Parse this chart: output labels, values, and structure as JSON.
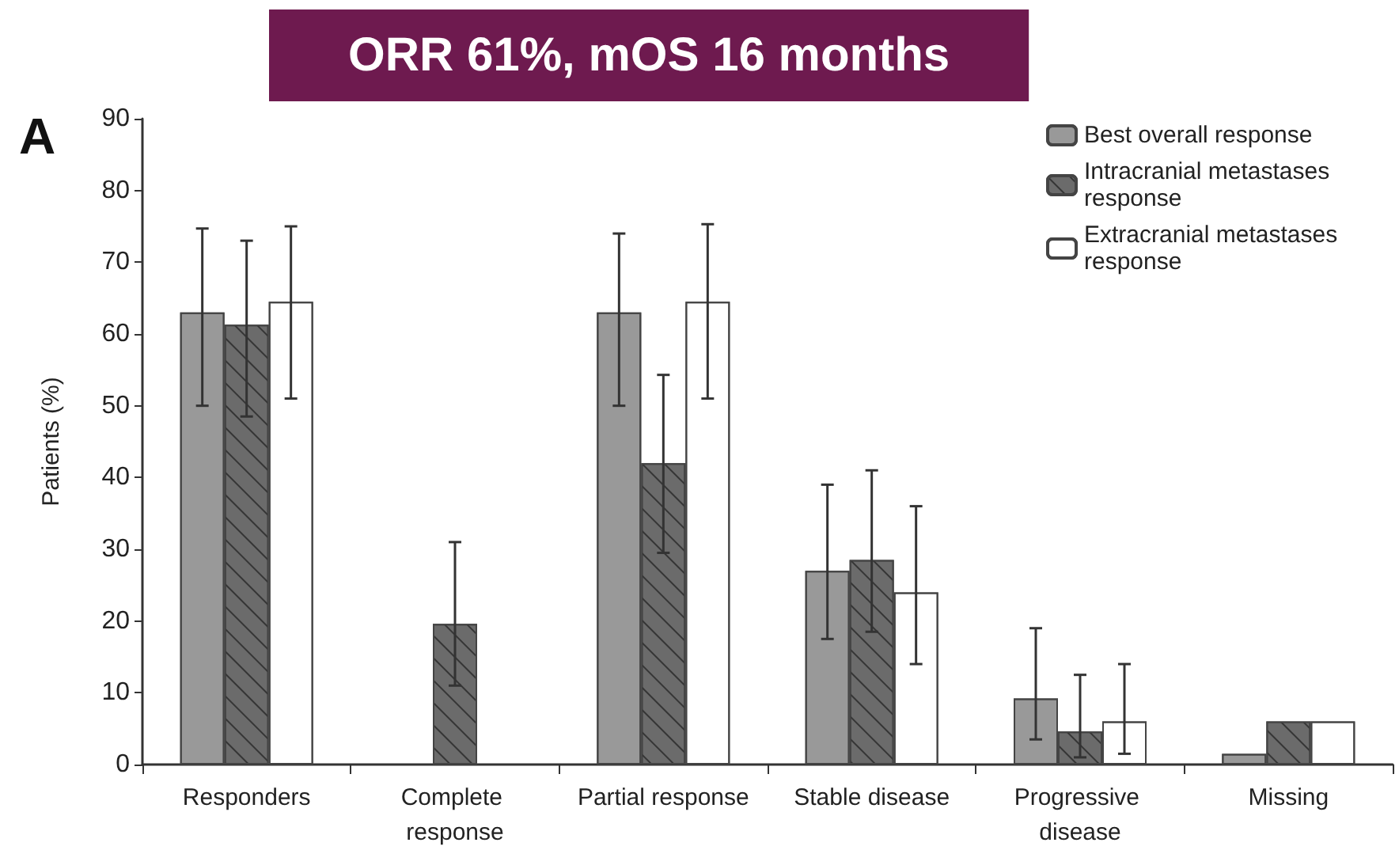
{
  "chart_data": {
    "type": "bar",
    "title": "ORR 61%, mOS 16 months",
    "ylabel": "Patients (%)",
    "annotations": [
      "A"
    ],
    "categories": [
      "Responders",
      "Complete response",
      "Partial response",
      "Stable disease",
      "Progressive disease",
      "Missing"
    ],
    "series": [
      {
        "name": "Best overall response",
        "color": "#999999",
        "values": [
          63,
          null,
          63,
          27,
          9.2,
          1.5
        ],
        "errors": [
          [
            50,
            74.7
          ],
          null,
          [
            50,
            74
          ],
          [
            17.5,
            39
          ],
          [
            3.5,
            19
          ],
          null
        ]
      },
      {
        "name": "Intracranial metastases response",
        "color": "#6b6b6b",
        "values": [
          61.3,
          19.6,
          42,
          28.5,
          4.6,
          6
        ],
        "errors": [
          [
            48.5,
            73
          ],
          [
            11,
            31
          ],
          [
            29.5,
            54.3
          ],
          [
            18.5,
            41
          ],
          [
            1,
            12.5
          ],
          null
        ]
      },
      {
        "name": "Extracranial metastases response",
        "color": "#ffffff",
        "values": [
          64.5,
          null,
          64.5,
          24,
          6,
          6
        ],
        "errors": [
          [
            51,
            75
          ],
          null,
          [
            51,
            75.3
          ],
          [
            14,
            36
          ],
          [
            1.5,
            14
          ],
          null
        ]
      }
    ],
    "ylim": [
      0,
      90
    ],
    "yticks": [
      0,
      10,
      20,
      30,
      40,
      50,
      60,
      70,
      80,
      90
    ],
    "grid": false,
    "legend": "top right"
  }
}
